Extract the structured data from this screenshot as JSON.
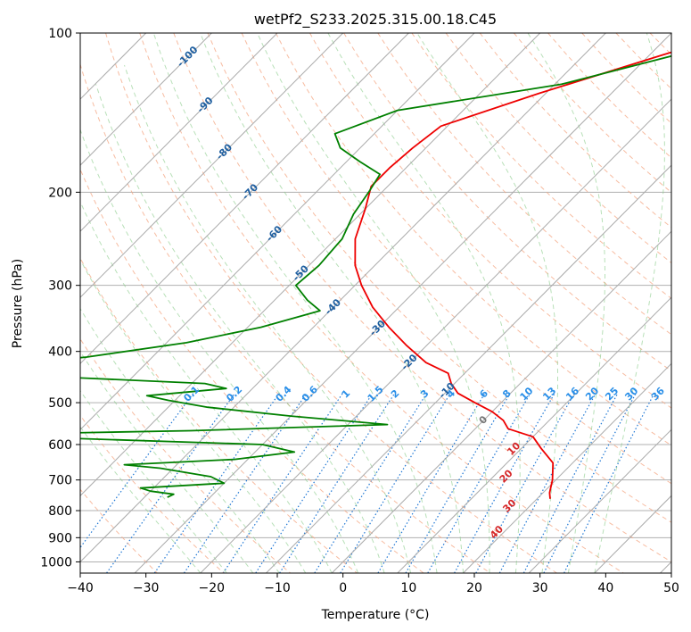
{
  "chart_data": {
    "type": "line",
    "title": "wetPf2_S233.2025.315.00.18.C45",
    "xlabel": "Temperature (°C)",
    "ylabel": "Pressure (hPa)",
    "xlim": [
      -40,
      50
    ],
    "ylim": [
      1050,
      100
    ],
    "y_scale": "log",
    "grid": true,
    "x_ticks": [
      "−40",
      "−30",
      "−20",
      "−10",
      "0",
      "10",
      "20",
      "30",
      "40",
      "50"
    ],
    "x_tick_values": [
      -40,
      -30,
      -20,
      -10,
      0,
      10,
      20,
      30,
      40,
      50
    ],
    "y_ticks": [
      "100",
      "200",
      "300",
      "400",
      "500",
      "600",
      "700",
      "800",
      "900",
      "1000"
    ],
    "y_tick_values": [
      100,
      200,
      300,
      400,
      500,
      600,
      700,
      800,
      900,
      1000
    ],
    "skew_x_per_decade": 80,
    "colors": {
      "temperature": "#ee0000",
      "dewpoint": "#008000",
      "isotherm": "#aaaaaa",
      "dry_adiabat": "#f4a582",
      "moist_adiabat": "#88cc88",
      "mixing_ratio": "#1f77d4",
      "isotherm_label_cold": "#1f5fa0",
      "mixing_label": "#2a8fe8",
      "theta_label": "#d62728",
      "zero_label": "#777777"
    },
    "series": [
      {
        "name": "",
        "role": "temperature",
        "points": [
          [
            -20.5,
            100
          ],
          [
            -28.0,
            110
          ],
          [
            -41.0,
            130
          ],
          [
            -51.0,
            150
          ],
          [
            -52.0,
            165
          ],
          [
            -52.5,
            180
          ],
          [
            -52.5,
            195
          ],
          [
            -50.0,
            215
          ],
          [
            -47.0,
            245
          ],
          [
            -43.0,
            275
          ],
          [
            -39.0,
            300
          ],
          [
            -34.0,
            330
          ],
          [
            -28.5,
            360
          ],
          [
            -23.0,
            390
          ],
          [
            -17.5,
            420
          ],
          [
            -12.5,
            440
          ],
          [
            -10.5,
            460
          ],
          [
            -8.0,
            480
          ],
          [
            -4.0,
            500
          ],
          [
            0.0,
            520
          ],
          [
            3.0,
            540
          ],
          [
            5.0,
            560
          ],
          [
            10.0,
            580
          ],
          [
            13.0,
            610
          ],
          [
            17.0,
            650
          ],
          [
            19.5,
            700
          ],
          [
            21.0,
            740
          ],
          [
            22.0,
            760
          ]
        ]
      },
      {
        "name": "",
        "role": "dewpoint",
        "points": [
          [
            -18.5,
            100
          ],
          [
            -26.0,
            110
          ],
          [
            -39.0,
            125
          ],
          [
            -60.0,
            140
          ],
          [
            -66.0,
            155
          ],
          [
            -63.0,
            165
          ],
          [
            -58.0,
            175
          ],
          [
            -53.0,
            185
          ],
          [
            -52.0,
            200
          ],
          [
            -51.0,
            220
          ],
          [
            -49.0,
            245
          ],
          [
            -48.5,
            275
          ],
          [
            -49.0,
            300
          ],
          [
            -45.0,
            320
          ],
          [
            -41.5,
            335
          ],
          [
            -48.0,
            360
          ],
          [
            -57.0,
            385
          ],
          [
            -70.0,
            410
          ],
          [
            -78.0,
            420
          ],
          [
            -75.0,
            445
          ],
          [
            -48.0,
            460
          ],
          [
            -44.0,
            470
          ],
          [
            -55.0,
            485
          ],
          [
            -51.0,
            495
          ],
          [
            -44.0,
            510
          ],
          [
            -30.0,
            530
          ],
          [
            -14.0,
            550
          ],
          [
            -43.0,
            565
          ],
          [
            -77.0,
            575
          ],
          [
            -30.0,
            600
          ],
          [
            -24.0,
            620
          ],
          [
            -32.0,
            640
          ],
          [
            -48.0,
            655
          ],
          [
            -42.0,
            665
          ],
          [
            -33.0,
            690
          ],
          [
            -30.0,
            710
          ],
          [
            -42.0,
            725
          ],
          [
            -40.0,
            735
          ],
          [
            -36.0,
            745
          ],
          [
            -36.5,
            755
          ]
        ]
      }
    ],
    "isotherm_labels": [
      {
        "text": "-100",
        "t": -100,
        "p": 111
      },
      {
        "text": "-90",
        "t": -90,
        "p": 137
      },
      {
        "text": "-80",
        "t": -80,
        "p": 168
      },
      {
        "text": "-70",
        "t": -70,
        "p": 200
      },
      {
        "text": "-60",
        "t": -60,
        "p": 240
      },
      {
        "text": "-50",
        "t": -50,
        "p": 285
      },
      {
        "text": "-40",
        "t": -40,
        "p": 330
      },
      {
        "text": "-30",
        "t": -30,
        "p": 362
      },
      {
        "text": "-20",
        "t": -20,
        "p": 420
      },
      {
        "text": "-10",
        "t": -10,
        "p": 475
      },
      {
        "text": "0",
        "t": 0,
        "p": 540
      }
    ],
    "mixing_ratio_labels": {
      "pressure": 482,
      "items": [
        {
          "text": "0.1",
          "t": -23.0
        },
        {
          "text": "0.2",
          "t": -16.5
        },
        {
          "text": "0.4",
          "t": -9.0
        },
        {
          "text": "0.6",
          "t": -5.0
        },
        {
          "text": "1",
          "t": 0.5
        },
        {
          "text": "1.5",
          "t": 5.0
        },
        {
          "text": "2",
          "t": 8.0
        },
        {
          "text": "3",
          "t": 12.5
        },
        {
          "text": "4",
          "t": 16.5
        },
        {
          "text": "6",
          "t": 21.5
        },
        {
          "text": "8",
          "t": 25.0
        },
        {
          "text": "10",
          "t": 28.0
        },
        {
          "text": "13",
          "t": 31.5
        },
        {
          "text": "16",
          "t": 35.0
        },
        {
          "text": "20",
          "t": 38.0
        },
        {
          "text": "25",
          "t": 41.0
        },
        {
          "text": "30",
          "t": 44.0
        },
        {
          "text": "36",
          "t": 48.0
        }
      ]
    },
    "theta_labels": [
      {
        "text": "10",
        "t": 9.0,
        "p": 612
      },
      {
        "text": "20",
        "t": 12.0,
        "p": 690
      },
      {
        "text": "30",
        "t": 17.0,
        "p": 785
      },
      {
        "text": "40",
        "t": 19.0,
        "p": 880
      }
    ]
  }
}
